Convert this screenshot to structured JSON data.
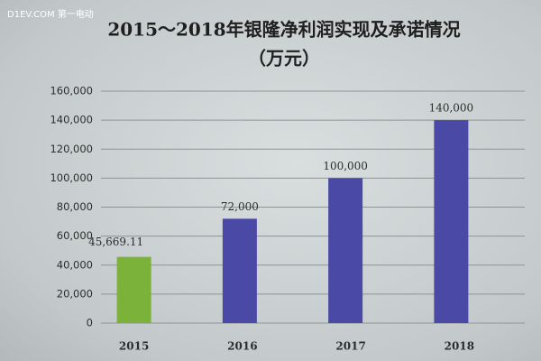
{
  "watermark": "D1EV.COM 第一电动",
  "chart_data": {
    "type": "bar",
    "title": "2015～2018年银隆净利润实现及承诺情况",
    "subtitle": "（万元）",
    "categories": [
      "2015",
      "2016",
      "2017",
      "2018"
    ],
    "values": [
      45669.11,
      72000,
      100000,
      140000
    ],
    "value_labels": [
      "45,669.11",
      "72,000",
      "100,000",
      "140,000"
    ],
    "colors": [
      "#7bb23a",
      "#4a49a6",
      "#4a49a6",
      "#4a49a6"
    ],
    "ylim": [
      0,
      160000
    ],
    "yticks": [
      0,
      {
        "value": 20000,
        "label": "20,000"
      },
      {
        "value": 40000,
        "label": "40,000"
      },
      {
        "value": 60000,
        "label": "60,000"
      },
      {
        "value": 80000,
        "label": "80,000"
      },
      {
        "value": 100000,
        "label": "100,000"
      },
      {
        "value": 120000,
        "label": "120,000"
      },
      {
        "value": 140000,
        "label": "140,000"
      },
      {
        "value": 160000,
        "label": "160,000"
      }
    ],
    "grid": true
  }
}
